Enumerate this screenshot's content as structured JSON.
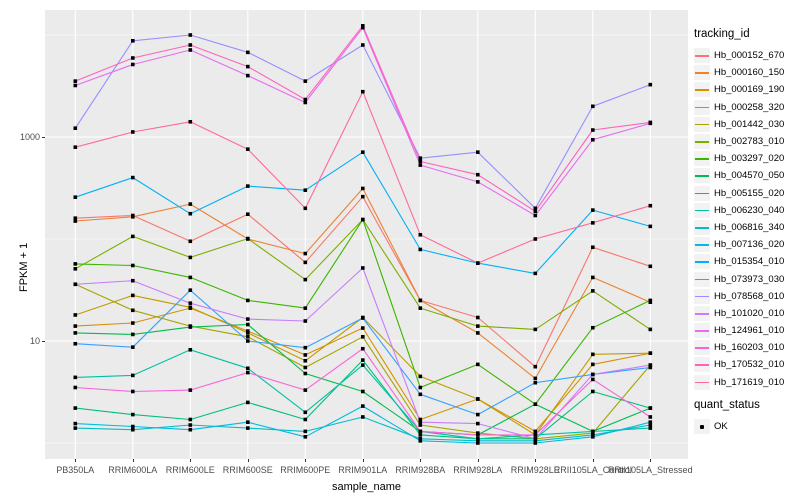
{
  "figure": {
    "background": "#FFFFFF",
    "panel_background": "#EBEBEB",
    "grid_color": "#FFFFFF",
    "tick_color": "#333333",
    "tick_label_color": "#4D4D4D",
    "point_color": "#000000"
  },
  "chart_data": {
    "type": "line",
    "title": "",
    "xlabel": "sample_name",
    "ylabel": "FPKM + 1",
    "y_scale": "log10",
    "grid": true,
    "legend_position": "right",
    "y_major_ticks": [
      {
        "value": 1000,
        "label": "1000"
      },
      {
        "value": 10,
        "label": "10"
      }
    ],
    "y_minor_ticks": [
      10000,
      100,
      1
    ],
    "ylim": [
      0.68,
      17000
    ],
    "categories": [
      "PB350LA",
      "RRIM600LA",
      "RRIM600LE",
      "RRIM600SE",
      "RRIM600PE",
      "RRIM901LA",
      "RRIM928BA",
      "RRIM928LA",
      "RRIM928LE",
      "RRII105LA_Control",
      "RRII105LA_Stressed"
    ],
    "legend_title": "tracking_id",
    "series": [
      {
        "name": "Hb_000152_670",
        "color": "#F8766D",
        "values": [
          160,
          170,
          95,
          175,
          59,
          260,
          25,
          17,
          5.6,
          83,
          54
        ]
      },
      {
        "name": "Hb_000160_150",
        "color": "#EA8331",
        "values": [
          150,
          165,
          220,
          100,
          72,
          313,
          25,
          12,
          4.3,
          42,
          24
        ]
      },
      {
        "name": "Hb_000169_190",
        "color": "#D89000",
        "values": [
          14,
          15,
          21,
          12.5,
          7.3,
          13.4,
          1.7,
          2.7,
          1.3,
          5.9,
          7.6
        ]
      },
      {
        "name": "Hb_000258_320",
        "color": "#C09B00",
        "values": [
          18,
          28,
          21.4,
          12,
          6.4,
          17,
          4.5,
          2.7,
          1.2,
          7.4,
          7.6
        ]
      },
      {
        "name": "Hb_001442_030",
        "color": "#A3A500",
        "values": [
          36,
          20,
          14,
          11,
          5.5,
          11,
          1.5,
          1.25,
          1.1,
          1.25,
          5.8
        ]
      },
      {
        "name": "Hb_002783_010",
        "color": "#7CAE00",
        "values": [
          51,
          106,
          66,
          101,
          40,
          155,
          21,
          14,
          13,
          31,
          13
        ]
      },
      {
        "name": "Hb_003297_020",
        "color": "#39B600",
        "values": [
          57,
          55,
          42,
          25,
          21,
          155,
          3.5,
          5.9,
          2.4,
          13.5,
          25
        ]
      },
      {
        "name": "Hb_004570_050",
        "color": "#00BB4E",
        "values": [
          12,
          11.6,
          13.7,
          14.5,
          4.8,
          3.2,
          1.3,
          1.2,
          2.4,
          1.3,
          2.2
        ]
      },
      {
        "name": "Hb_005155_020",
        "color": "#00BF7D",
        "values": [
          2.2,
          1.9,
          1.7,
          2.5,
          1.7,
          6.5,
          1.2,
          1.1,
          1.1,
          3.2,
          2.2
        ]
      },
      {
        "name": "Hb_006230_040",
        "color": "#00C1A3",
        "values": [
          4.4,
          4.6,
          8.2,
          5.4,
          2.0,
          5.8,
          1.3,
          1.1,
          1.2,
          1.3,
          1.4
        ]
      },
      {
        "name": "Hb_006816_340",
        "color": "#00BFC4",
        "values": [
          1.4,
          1.35,
          1.5,
          1.4,
          1.3,
          1.8,
          1.1,
          1.05,
          1.05,
          1.2,
          1.5
        ]
      },
      {
        "name": "Hb_007136_020",
        "color": "#00BAE0",
        "values": [
          1.55,
          1.45,
          1.35,
          1.6,
          1.15,
          2.3,
          1.05,
          1.0,
          1.0,
          1.15,
          1.6
        ]
      },
      {
        "name": "Hb_015354_010",
        "color": "#00B0F6",
        "values": [
          257,
          400,
          177,
          330,
          301,
          710,
          79,
          58,
          46,
          192,
          133
        ]
      },
      {
        "name": "Hb_073973_030",
        "color": "#35A2FF",
        "values": [
          9.4,
          8.7,
          31.5,
          10,
          8.6,
          16.8,
          3.0,
          1.9,
          3.9,
          4.7,
          5.5
        ]
      },
      {
        "name": "Hb_078568_010",
        "color": "#9590FF",
        "values": [
          1220,
          8770,
          10000,
          6760,
          3530,
          7980,
          620,
          710,
          200,
          2000,
          3260
        ]
      },
      {
        "name": "Hb_101020_010",
        "color": "#C77CFF",
        "values": [
          36,
          39,
          23.5,
          16.4,
          15.7,
          52,
          1.6,
          1.55,
          1.1,
          4.7,
          5.8
        ]
      },
      {
        "name": "Hb_124961_010",
        "color": "#E76BF3",
        "values": [
          3200,
          5140,
          7130,
          4000,
          2180,
          11800,
          530,
          363,
          170,
          940,
          1360
        ]
      },
      {
        "name": "Hb_160203_010",
        "color": "#FA62DB",
        "values": [
          3.5,
          3.2,
          3.3,
          4.9,
          3.3,
          8.4,
          1.3,
          1.2,
          1.2,
          4.2,
          1.8
        ]
      },
      {
        "name": "Hb_170532_010",
        "color": "#FF62BC",
        "values": [
          3530,
          5950,
          7980,
          4900,
          2330,
          12300,
          575,
          427,
          187,
          1170,
          1390
        ]
      },
      {
        "name": "Hb_171619_010",
        "color": "#FF6A98",
        "values": [
          795,
          1120,
          1410,
          760,
          200,
          2780,
          110,
          58,
          100,
          144,
          212
        ]
      }
    ],
    "legend2_title": "quant_status",
    "legend2_items": [
      {
        "label": "OK"
      }
    ]
  }
}
